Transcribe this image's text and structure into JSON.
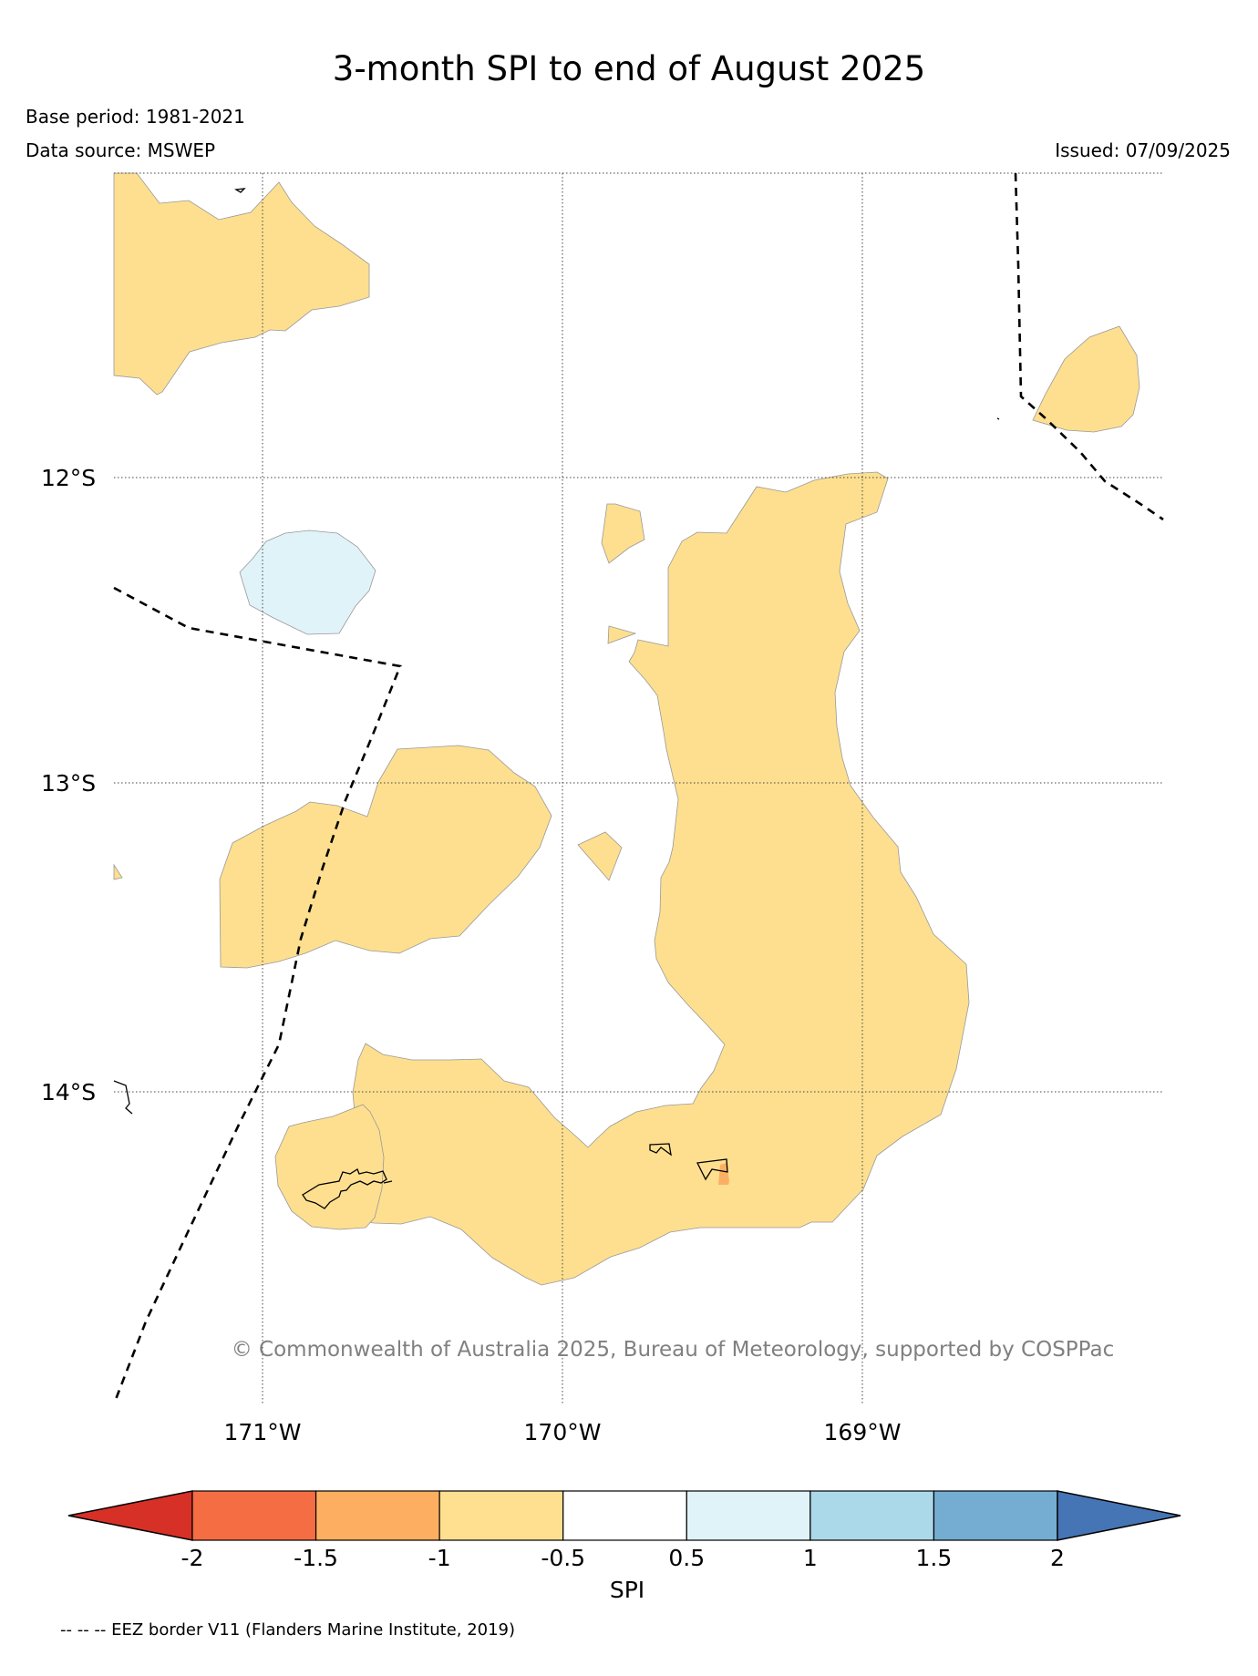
{
  "header": {
    "title": "3-month SPI to end of August 2025",
    "base_period": "Base period: 1981-2021",
    "data_source": "Data source: MSWEP",
    "issued": "Issued: 07/09/2025"
  },
  "map": {
    "lat_labels": [
      "12°S",
      "13°S",
      "14°S"
    ],
    "lon_labels": [
      "171°W",
      "170°W",
      "169°W"
    ],
    "copyright": "© Commonwealth of Australia 2025, Bureau of Meteorology, supported by COSPPac",
    "colors": {
      "dry_-1_-0.5": "#fddf8f",
      "wet_0.5_1": "#e0f3f8",
      "dry_-1.5_-1": "#fbb063"
    }
  },
  "colorbar": {
    "label": "SPI",
    "ticks": [
      "-2",
      "-1.5",
      "-1",
      "-0.5",
      "0.5",
      "1",
      "1.5",
      "2"
    ],
    "colors": [
      "#d73027",
      "#f46d43",
      "#fdae61",
      "#fee090",
      "#ffffff",
      "#e0f3f8",
      "#abd9e9",
      "#74add1",
      "#4575b4"
    ]
  },
  "footer": {
    "eez_note": "-- -- -- EEZ border V11 (Flanders Marine Institute, 2019)"
  }
}
